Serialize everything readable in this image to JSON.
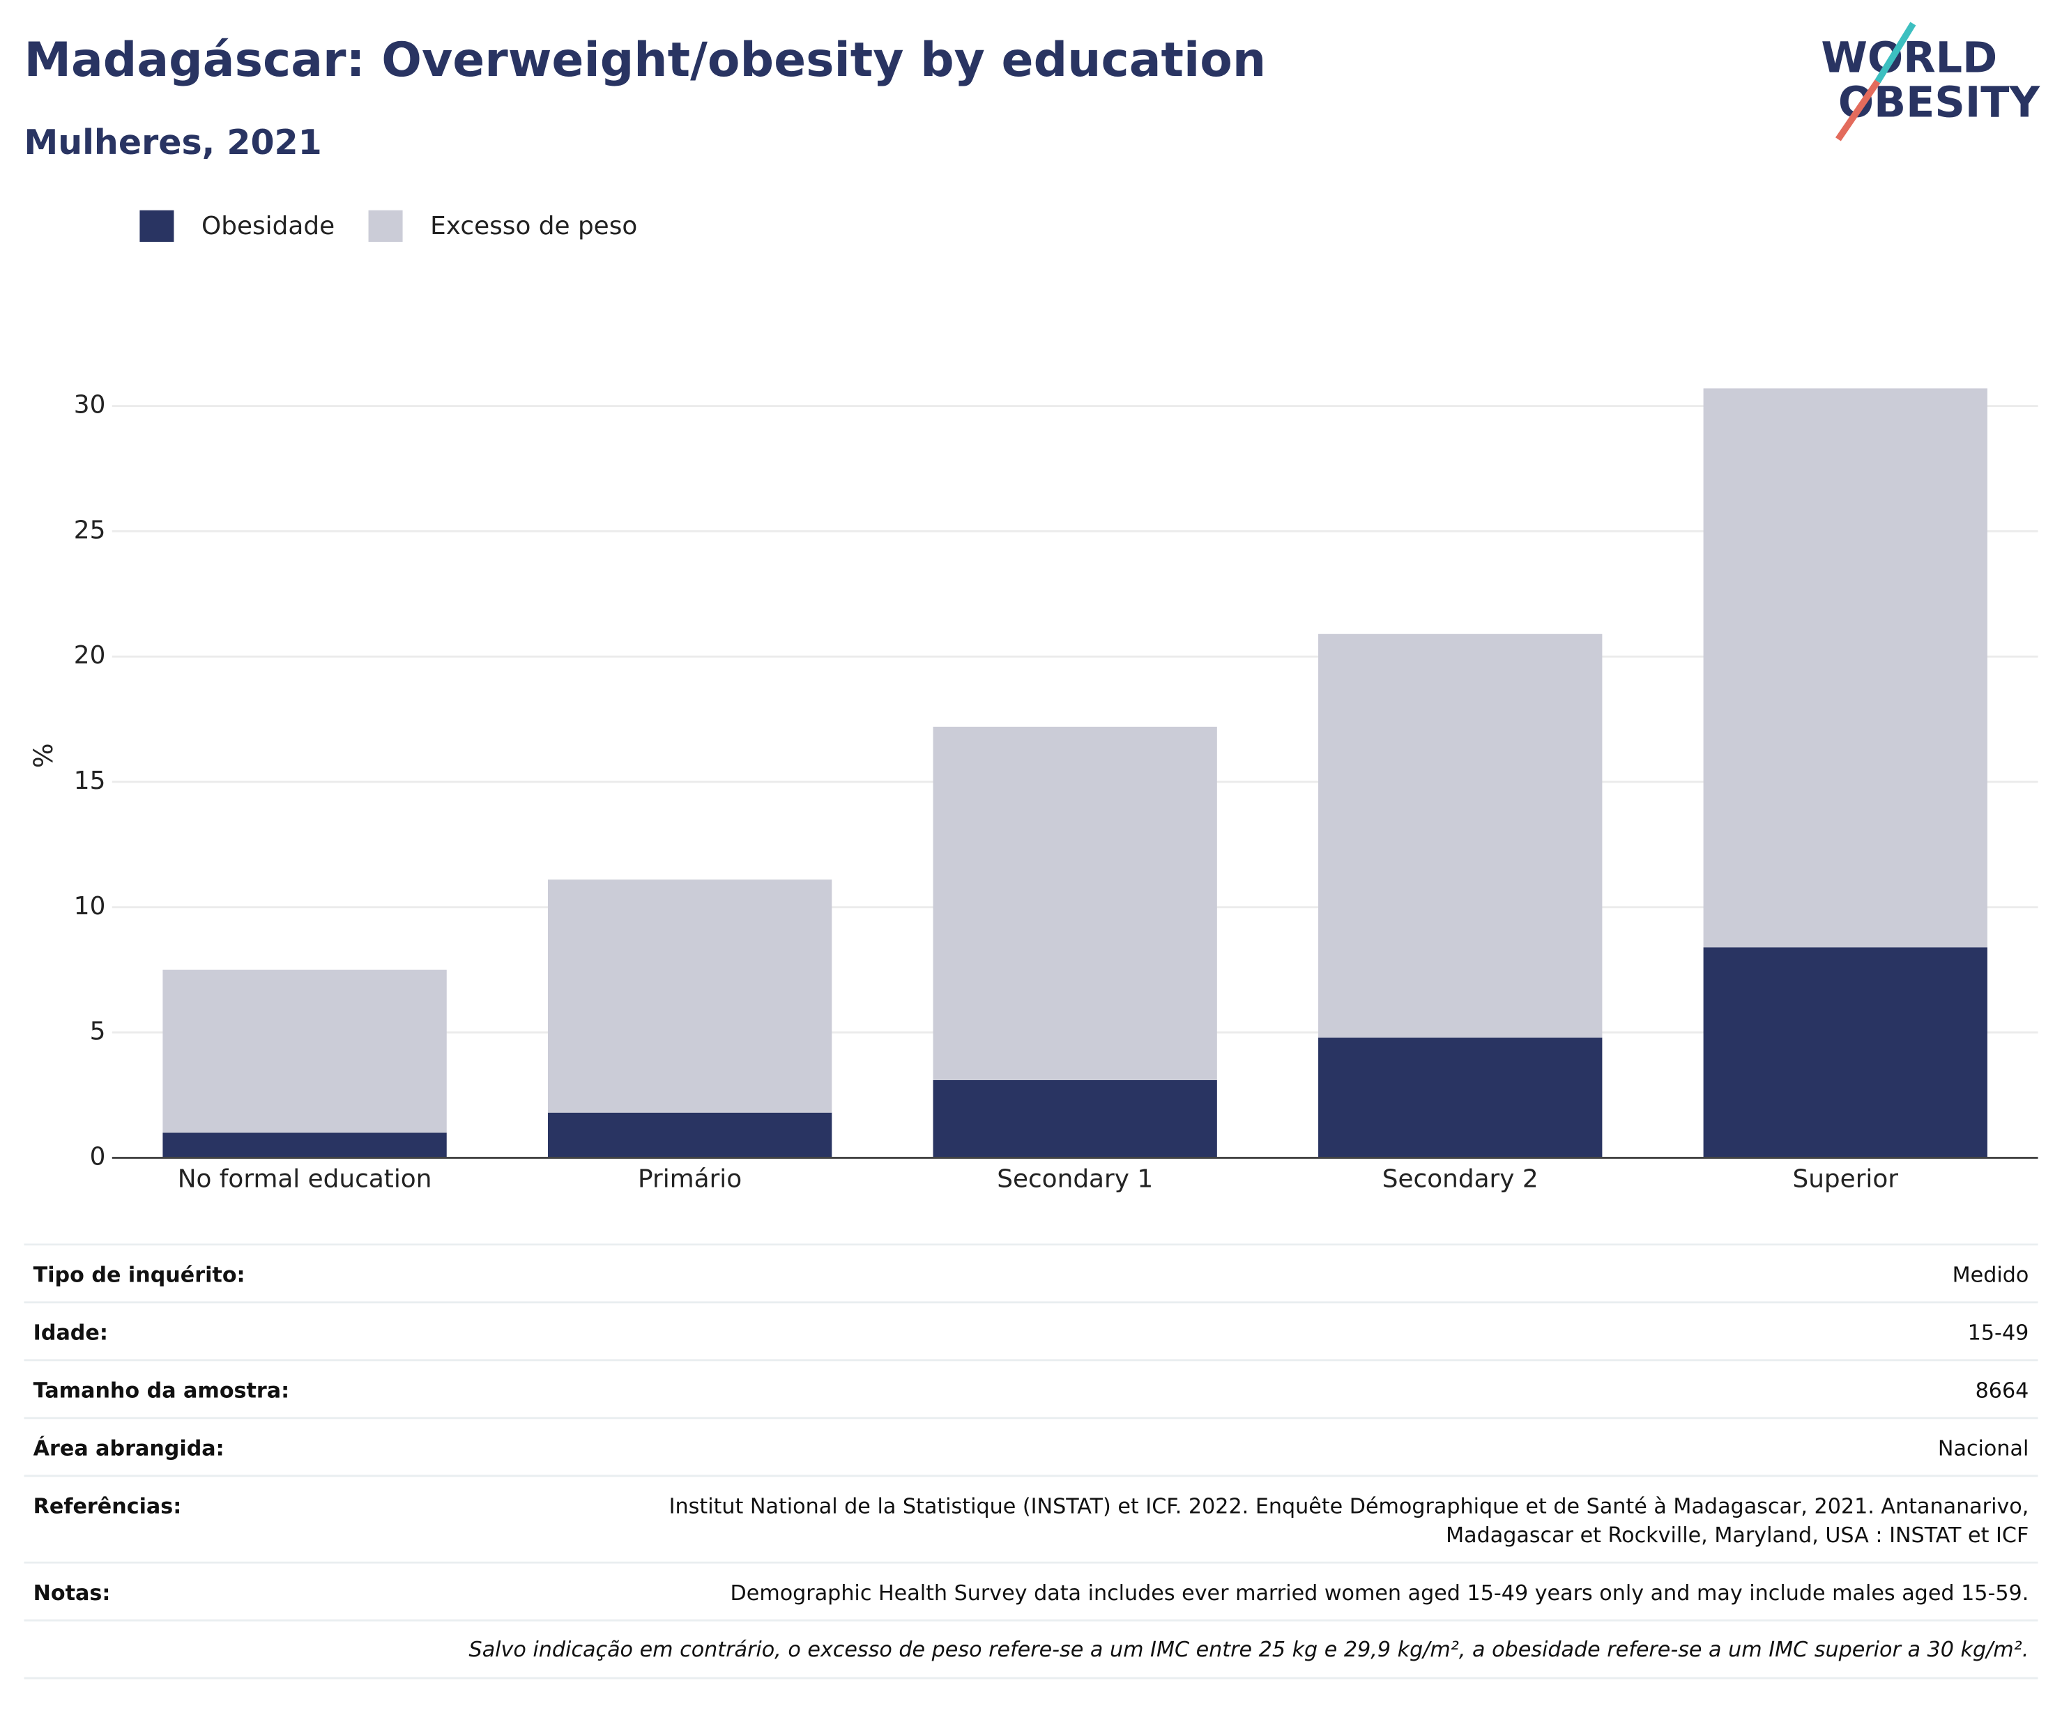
{
  "chart_data": {
    "type": "stacked_bar",
    "title": "Madagáscar: Overweight/obesity by education",
    "subtitle": "Mulheres, 2021",
    "y_label": "%",
    "categories": [
      "No formal education",
      "Primário",
      "Secondary 1",
      "Secondary 2",
      "Superior"
    ],
    "series": [
      {
        "name": "Obesidade",
        "color": "#293462",
        "values": [
          1.0,
          1.8,
          3.1,
          4.8,
          8.4
        ]
      },
      {
        "name": "Excesso de peso",
        "color": "#cbccd7",
        "values": [
          6.5,
          9.3,
          14.1,
          16.1,
          22.3
        ]
      }
    ],
    "ylim": [
      0,
      32
    ],
    "yticks": [
      0,
      5,
      10,
      15,
      20,
      25,
      30
    ],
    "grid": true,
    "legend": "top-left"
  },
  "logo": [
    "WORLD",
    "OBESITY"
  ],
  "info_table": {
    "rows": [
      {
        "label": "Tipo de inquérito:",
        "value": [
          "Medido"
        ]
      },
      {
        "label": "Idade:",
        "value": [
          "15-49"
        ]
      },
      {
        "label": "Tamanho da amostra:",
        "value": [
          "8664"
        ]
      },
      {
        "label": "Área abrangida:",
        "value": [
          "Nacional"
        ]
      },
      {
        "label": "Referências:",
        "value": [
          "Institut National de la Statistique (INSTAT) et ICF. 2022. Enquête Démographique et de Santé à Madagascar, 2021. Antananarivo,",
          "Madagascar et Rockville, Maryland, USA : INSTAT et ICF"
        ]
      },
      {
        "label": "Notas:",
        "value": [
          "Demographic Health Survey data includes ever married women aged 15-49 years only and may include males aged 15-59."
        ]
      }
    ],
    "footnote": "Salvo indicação em contrário, o excesso de peso refere-se a um IMC entre 25 kg e 29,9 kg/m², a obesidade refere-se a um IMC superior a 30 kg/m²."
  }
}
